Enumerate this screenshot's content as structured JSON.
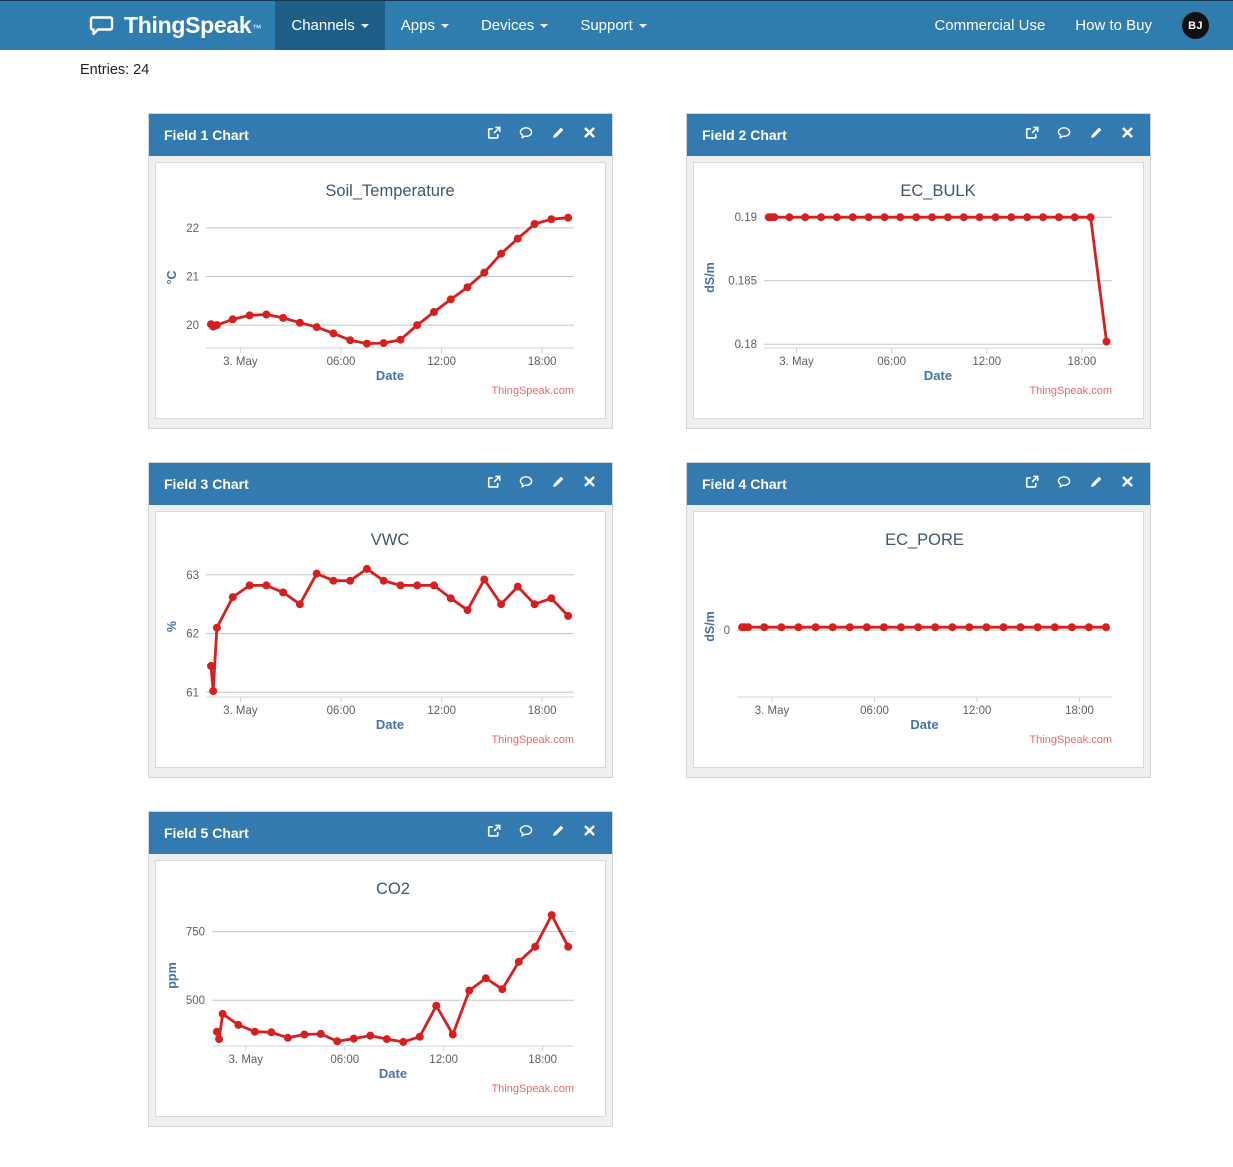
{
  "navbar": {
    "brand": "ThingSpeak",
    "brand_tm": "™",
    "items": [
      {
        "label": "Channels",
        "active": true
      },
      {
        "label": "Apps",
        "active": false
      },
      {
        "label": "Devices",
        "active": false
      },
      {
        "label": "Support",
        "active": false
      }
    ],
    "right_items": [
      "Commercial Use",
      "How to Buy"
    ],
    "avatar_initials": "BJ"
  },
  "entries_label": "Entries: 24",
  "watermark": "ThingSpeak.com",
  "panel_tools": [
    "external-link",
    "comment",
    "edit",
    "close"
  ],
  "colors": {
    "navbar_bg": "#2F7DAF",
    "navbar_active_bg": "#1F5F87",
    "panel_header_bg": "#337AB0",
    "line": "#D62020",
    "chart_title": "#3E576F",
    "axis_title": "#4572A7",
    "tick_text": "#606060",
    "gridline": "#C6C6C6",
    "axis_line": "#C9D6E2",
    "watermark": "#E8696B",
    "avatar_bg": "#111111"
  },
  "chart_data": {
    "type": "line",
    "xlabel": "Date",
    "x_unit": "hours from 3 May 00:00",
    "xlim": [
      -2.05,
      19.9
    ],
    "xticks": [
      {
        "v": 0,
        "label": "3. May"
      },
      {
        "v": 6,
        "label": "06:00"
      },
      {
        "v": 12,
        "label": "12:00"
      },
      {
        "v": 18,
        "label": "18:00"
      }
    ],
    "shared_x_hours": [
      -1.75,
      -1.62,
      -1.4,
      -0.45,
      0.55,
      1.55,
      2.55,
      3.55,
      4.55,
      5.55,
      6.55,
      7.55,
      8.55,
      9.55,
      10.55,
      11.55,
      12.55,
      13.55,
      14.55,
      15.55,
      16.55,
      17.55,
      18.55,
      19.55
    ],
    "charts": [
      {
        "panel_title": "Field 1 Chart",
        "title": "Soil_Temperature",
        "ylabel": "°C",
        "yticks": [
          20,
          21,
          22
        ],
        "ylim": [
          19.53,
          22.43
        ],
        "values": [
          20.02,
          19.97,
          20.0,
          20.12,
          20.2,
          20.22,
          20.15,
          20.05,
          19.96,
          19.83,
          19.69,
          19.62,
          19.63,
          19.7,
          20.0,
          20.27,
          20.53,
          20.78,
          21.08,
          21.47,
          21.78,
          22.08,
          22.18,
          22.21
        ]
      },
      {
        "panel_title": "Field 2 Chart",
        "title": "EC_BULK",
        "ylabel": "dS/m",
        "yticks": [
          0.18,
          0.185,
          0.19
        ],
        "ylim": [
          0.1797,
          0.1908
        ],
        "values": [
          0.19,
          0.19,
          0.19,
          0.19,
          0.19,
          0.19,
          0.19,
          0.19,
          0.19,
          0.19,
          0.19,
          0.19,
          0.19,
          0.19,
          0.19,
          0.19,
          0.19,
          0.19,
          0.19,
          0.19,
          0.19,
          0.19,
          0.19,
          0.1802
        ]
      },
      {
        "panel_title": "Field 3 Chart",
        "title": "VWC",
        "ylabel": "%",
        "yticks": [
          61,
          62,
          63
        ],
        "ylim": [
          60.92,
          63.32
        ],
        "values": [
          61.45,
          61.02,
          62.1,
          62.62,
          62.82,
          62.82,
          62.7,
          62.5,
          63.02,
          62.9,
          62.9,
          63.1,
          62.9,
          62.82,
          62.82,
          62.82,
          62.6,
          62.4,
          62.92,
          62.5,
          62.8,
          62.5,
          62.6,
          62.3
        ]
      },
      {
        "panel_title": "Field 4 Chart",
        "title": "EC_PORE",
        "ylabel": "dS/m",
        "yticks": [
          0
        ],
        "ylim": [
          -0.48,
          0.53
        ],
        "values": [
          0.02,
          0.02,
          0.02,
          0.02,
          0.02,
          0.02,
          0.02,
          0.02,
          0.02,
          0.02,
          0.02,
          0.02,
          0.02,
          0.02,
          0.02,
          0.02,
          0.02,
          0.02,
          0.02,
          0.02,
          0.02,
          0.02,
          0.02,
          0.02
        ]
      },
      {
        "panel_title": "Field 5 Chart",
        "title": "CO2",
        "ylabel": "ppm",
        "yticks": [
          500,
          750
        ],
        "ylim": [
          333,
          847
        ],
        "values": [
          385,
          358,
          450,
          410,
          385,
          383,
          363,
          375,
          377,
          350,
          360,
          371,
          358,
          348,
          367,
          480,
          375,
          535,
          580,
          540,
          640,
          695,
          810,
          695
        ]
      }
    ]
  }
}
